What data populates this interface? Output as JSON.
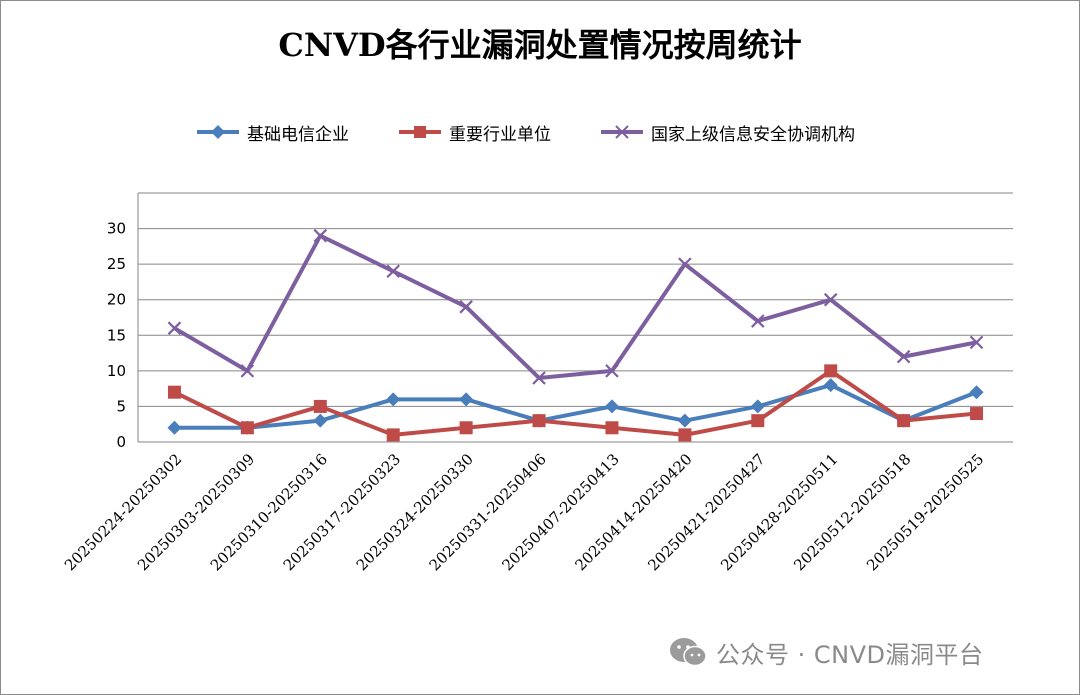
{
  "chart_data": {
    "type": "line",
    "title": "CNVD各行业漏洞处置情况按周统计",
    "categories": [
      "20250224-20250302",
      "20250303-20250309",
      "20250310-20250316",
      "20250317-20250323",
      "20250324-20250330",
      "20250331-20250406",
      "20250407-20250413",
      "20250414-20250420",
      "20250421-20250427",
      "20250428-20250511",
      "20250512-20250518",
      "20250519-20250525"
    ],
    "series": [
      {
        "name": "基础电信企业",
        "color": "#4a7ebb",
        "marker": "diamond",
        "values": [
          2,
          2,
          3,
          6,
          6,
          3,
          5,
          3,
          5,
          8,
          3,
          7
        ]
      },
      {
        "name": "重要行业单位",
        "color": "#be4b48",
        "marker": "square",
        "values": [
          7,
          2,
          5,
          1,
          2,
          3,
          2,
          1,
          3,
          10,
          3,
          4
        ]
      },
      {
        "name": "国家上级信息安全协调机构",
        "color": "#7d5fa0",
        "marker": "x",
        "values": [
          16,
          10,
          29,
          24,
          19,
          9,
          10,
          25,
          17,
          20,
          12,
          14
        ]
      }
    ],
    "yticks": [
      "0",
      "5",
      "10",
      "15",
      "20",
      "25",
      "30"
    ],
    "ylim": [
      0,
      35
    ],
    "legend_position": "top",
    "grid": true
  },
  "watermark": {
    "text": "公众号 · CNVD漏洞平台",
    "icon": "wechat-icon"
  }
}
